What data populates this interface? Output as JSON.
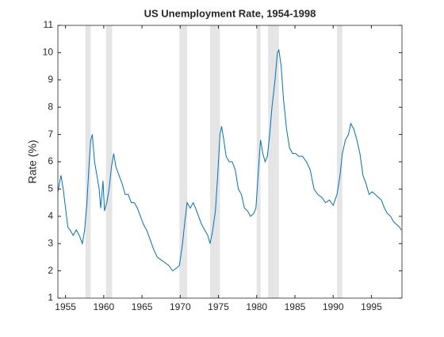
{
  "chart_data": {
    "type": "line",
    "title": "US Unemployment Rate, 1954-1998",
    "ylabel": "Rate (%)",
    "x": [
      1954.0,
      1954.4,
      1954.7,
      1955.0,
      1955.3,
      1955.6,
      1956.0,
      1956.4,
      1956.8,
      1957.2,
      1957.5,
      1957.8,
      1958.1,
      1958.3,
      1958.5,
      1958.8,
      1959.1,
      1959.4,
      1959.6,
      1959.9,
      1960.1,
      1960.4,
      1960.7,
      1961.0,
      1961.3,
      1961.6,
      1962.0,
      1962.4,
      1962.8,
      1963.2,
      1963.6,
      1964.0,
      1964.4,
      1964.8,
      1965.2,
      1965.6,
      1966.0,
      1966.5,
      1967.0,
      1967.5,
      1968.0,
      1968.5,
      1969.0,
      1969.5,
      1969.9,
      1970.3,
      1970.6,
      1970.9,
      1971.3,
      1971.7,
      1972.0,
      1972.4,
      1972.8,
      1973.2,
      1973.6,
      1973.9,
      1974.2,
      1974.6,
      1974.9,
      1975.2,
      1975.4,
      1975.7,
      1976.0,
      1976.4,
      1976.8,
      1977.2,
      1977.6,
      1978.0,
      1978.4,
      1978.8,
      1979.2,
      1979.6,
      1979.9,
      1980.3,
      1980.5,
      1980.8,
      1981.1,
      1981.4,
      1981.7,
      1982.0,
      1982.4,
      1982.7,
      1982.9,
      1983.2,
      1983.5,
      1983.9,
      1984.3,
      1984.7,
      1985.1,
      1985.5,
      1986.0,
      1986.5,
      1987.0,
      1987.5,
      1988.0,
      1988.5,
      1989.0,
      1989.5,
      1990.0,
      1990.5,
      1990.9,
      1991.2,
      1991.6,
      1992.0,
      1992.3,
      1992.7,
      1993.1,
      1993.5,
      1993.9,
      1994.3,
      1994.7,
      1995.1,
      1995.5,
      1995.9,
      1996.3,
      1996.7,
      1997.1,
      1997.5,
      1997.9,
      1998.3,
      1998.7,
      1998.9
    ],
    "values": [
      4.9,
      5.5,
      5.0,
      4.3,
      3.6,
      3.5,
      3.3,
      3.5,
      3.3,
      3.0,
      3.5,
      4.5,
      6.0,
      6.8,
      7.0,
      6.0,
      5.5,
      5.0,
      4.3,
      5.3,
      4.2,
      4.5,
      5.0,
      5.8,
      6.3,
      5.8,
      5.5,
      5.2,
      4.8,
      4.8,
      4.5,
      4.5,
      4.3,
      4.0,
      3.7,
      3.5,
      3.2,
      2.8,
      2.5,
      2.4,
      2.3,
      2.2,
      2.0,
      2.1,
      2.2,
      3.0,
      3.8,
      4.5,
      4.3,
      4.5,
      4.3,
      4.0,
      3.7,
      3.5,
      3.3,
      3.0,
      3.4,
      4.2,
      5.5,
      7.0,
      7.3,
      6.8,
      6.2,
      6.0,
      6.0,
      5.7,
      5.0,
      4.8,
      4.3,
      4.2,
      4.0,
      4.1,
      4.3,
      6.0,
      6.8,
      6.3,
      6.0,
      6.2,
      7.0,
      8.0,
      9.0,
      10.0,
      10.1,
      9.5,
      8.3,
      7.2,
      6.5,
      6.3,
      6.3,
      6.2,
      6.2,
      6.0,
      5.7,
      5.0,
      4.8,
      4.7,
      4.5,
      4.6,
      4.4,
      4.8,
      5.5,
      6.3,
      6.8,
      7.0,
      7.4,
      7.2,
      6.8,
      6.3,
      5.5,
      5.2,
      4.8,
      4.9,
      4.8,
      4.7,
      4.6,
      4.3,
      4.1,
      4.0,
      3.8,
      3.7,
      3.6,
      3.5
    ],
    "color": "#0072bd",
    "recessions": [
      [
        1957.6,
        1958.3
      ],
      [
        1960.3,
        1961.1
      ],
      [
        1969.9,
        1970.9
      ],
      [
        1973.9,
        1975.2
      ],
      [
        1980.0,
        1980.5
      ],
      [
        1981.5,
        1982.9
      ],
      [
        1990.5,
        1991.2
      ]
    ],
    "recession_color": "#e5e5e5",
    "xlim": [
      1954,
      1999
    ],
    "xticks": [
      1955,
      1960,
      1965,
      1970,
      1975,
      1980,
      1985,
      1990,
      1995
    ],
    "ylim": [
      1,
      11
    ],
    "yticks": [
      1,
      2,
      3,
      4,
      5,
      6,
      7,
      8,
      9,
      10,
      11
    ]
  }
}
